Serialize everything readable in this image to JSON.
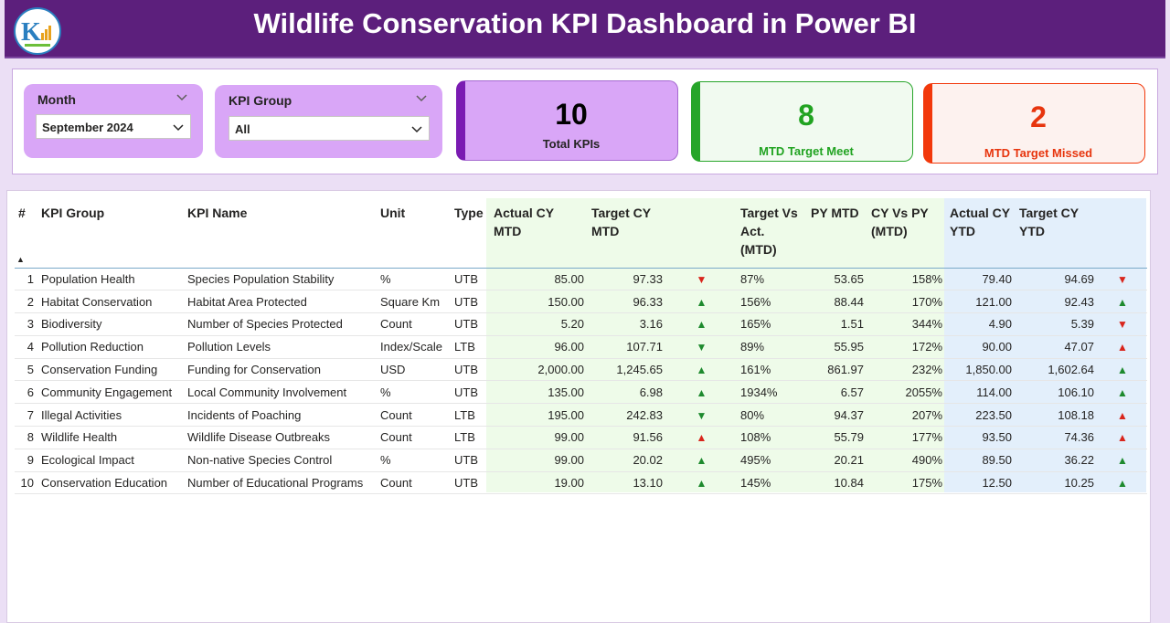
{
  "title": "Wildlife Conservation KPI Dashboard in Power BI",
  "filters": {
    "month": {
      "label": "Month",
      "value": "September 2024"
    },
    "kpi_group": {
      "label": "KPI Group",
      "value": "All"
    }
  },
  "cards": {
    "total": {
      "value": "10",
      "label": "Total KPIs",
      "accent": "#7a1bb2",
      "bg": "#d9a6f7",
      "color": "#000000"
    },
    "met": {
      "value": "8",
      "label": "MTD Target Meet",
      "accent": "#27a52a",
      "bg": "#f1faf0",
      "color": "#21a321"
    },
    "missed": {
      "value": "2",
      "label": "MTD Target Missed",
      "accent": "#f2380b",
      "bg": "#fdf2ef",
      "color": "#e7350e"
    }
  },
  "table": {
    "columns": [
      "#",
      "KPI Group",
      "KPI Name",
      "Unit",
      "Type",
      "Actual CY MTD",
      "Target CY MTD",
      "",
      "Target Vs Act. (MTD)",
      "PY MTD",
      "CY Vs PY (MTD)",
      "Actual CY YTD",
      "Target CY YTD",
      ""
    ],
    "rows": [
      {
        "n": "1",
        "group": "Population Health",
        "name": "Species Population Stability",
        "unit": "%",
        "type": "UTB",
        "act_mtd": "85.00",
        "tgt_mtd": "97.33",
        "mtd_icon": "down-red",
        "tva": "87%",
        "py": "53.65",
        "cvp": "158%",
        "act_ytd": "79.40",
        "tgt_ytd": "94.69",
        "ytd_icon": "down-red"
      },
      {
        "n": "2",
        "group": "Habitat Conservation",
        "name": "Habitat Area Protected",
        "unit": "Square Km",
        "type": "UTB",
        "act_mtd": "150.00",
        "tgt_mtd": "96.33",
        "mtd_icon": "up-green",
        "tva": "156%",
        "py": "88.44",
        "cvp": "170%",
        "act_ytd": "121.00",
        "tgt_ytd": "92.43",
        "ytd_icon": "up-green"
      },
      {
        "n": "3",
        "group": "Biodiversity",
        "name": "Number of Species Protected",
        "unit": "Count",
        "type": "UTB",
        "act_mtd": "5.20",
        "tgt_mtd": "3.16",
        "mtd_icon": "up-green",
        "tva": "165%",
        "py": "1.51",
        "cvp": "344%",
        "act_ytd": "4.90",
        "tgt_ytd": "5.39",
        "ytd_icon": "down-red"
      },
      {
        "n": "4",
        "group": "Pollution Reduction",
        "name": "Pollution Levels",
        "unit": "Index/Scale",
        "type": "LTB",
        "act_mtd": "96.00",
        "tgt_mtd": "107.71",
        "mtd_icon": "down-green",
        "tva": "89%",
        "py": "55.95",
        "cvp": "172%",
        "act_ytd": "90.00",
        "tgt_ytd": "47.07",
        "ytd_icon": "up-red"
      },
      {
        "n": "5",
        "group": "Conservation Funding",
        "name": "Funding for Conservation",
        "unit": "USD",
        "type": "UTB",
        "act_mtd": "2,000.00",
        "tgt_mtd": "1,245.65",
        "mtd_icon": "up-green",
        "tva": "161%",
        "py": "861.97",
        "cvp": "232%",
        "act_ytd": "1,850.00",
        "tgt_ytd": "1,602.64",
        "ytd_icon": "up-green"
      },
      {
        "n": "6",
        "group": "Community Engagement",
        "name": "Local Community Involvement",
        "unit": "%",
        "type": "UTB",
        "act_mtd": "135.00",
        "tgt_mtd": "6.98",
        "mtd_icon": "up-green",
        "tva": "1934%",
        "py": "6.57",
        "cvp": "2055%",
        "act_ytd": "114.00",
        "tgt_ytd": "106.10",
        "ytd_icon": "up-green"
      },
      {
        "n": "7",
        "group": "Illegal Activities",
        "name": "Incidents of Poaching",
        "unit": "Count",
        "type": "LTB",
        "act_mtd": "195.00",
        "tgt_mtd": "242.83",
        "mtd_icon": "down-green",
        "tva": "80%",
        "py": "94.37",
        "cvp": "207%",
        "act_ytd": "223.50",
        "tgt_ytd": "108.18",
        "ytd_icon": "up-red"
      },
      {
        "n": "8",
        "group": "Wildlife Health",
        "name": "Wildlife Disease Outbreaks",
        "unit": "Count",
        "type": "LTB",
        "act_mtd": "99.00",
        "tgt_mtd": "91.56",
        "mtd_icon": "up-red",
        "tva": "108%",
        "py": "55.79",
        "cvp": "177%",
        "act_ytd": "93.50",
        "tgt_ytd": "74.36",
        "ytd_icon": "up-red"
      },
      {
        "n": "9",
        "group": "Ecological Impact",
        "name": "Non-native Species Control",
        "unit": "%",
        "type": "UTB",
        "act_mtd": "99.00",
        "tgt_mtd": "20.02",
        "mtd_icon": "up-green",
        "tva": "495%",
        "py": "20.21",
        "cvp": "490%",
        "act_ytd": "89.50",
        "tgt_ytd": "36.22",
        "ytd_icon": "up-green"
      },
      {
        "n": "10",
        "group": "Conservation Education",
        "name": "Number of Educational Programs",
        "unit": "Count",
        "type": "UTB",
        "act_mtd": "19.00",
        "tgt_mtd": "13.10",
        "mtd_icon": "up-green",
        "tva": "145%",
        "py": "10.84",
        "cvp": "175%",
        "act_ytd": "12.50",
        "tgt_ytd": "10.25",
        "ytd_icon": "up-green"
      }
    ]
  },
  "colors": {
    "header_bg": "#5c1f7c",
    "mtd_band": "#eefbe9",
    "ytd_band": "#e3effb",
    "up_green": "#1e8a2e",
    "down_red": "#d9251c"
  }
}
